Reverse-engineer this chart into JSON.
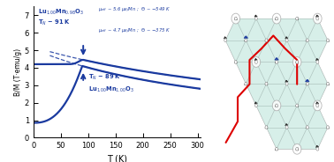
{
  "blue_color": "#1a3a9f",
  "fig_width": 3.78,
  "fig_height": 1.84,
  "dpi": 100,
  "xlim": [
    0,
    305
  ],
  "ylim": [
    0,
    7.5
  ],
  "xticks": [
    0,
    50,
    100,
    150,
    200,
    250,
    300
  ],
  "yticks": [
    0,
    1,
    2,
    3,
    4,
    5,
    6,
    7
  ],
  "xlabel": "T (K)",
  "ylabel": "B/M (T·emu/g)",
  "background_color": "#ffffff",
  "teal": "#a8ddd0",
  "teal_dark": "#7fc4b4",
  "gray_bond": "#aaaaaa",
  "black_arrow": "#222222",
  "blue_arrow": "#1a3a9f",
  "red_line": "#dd0000"
}
